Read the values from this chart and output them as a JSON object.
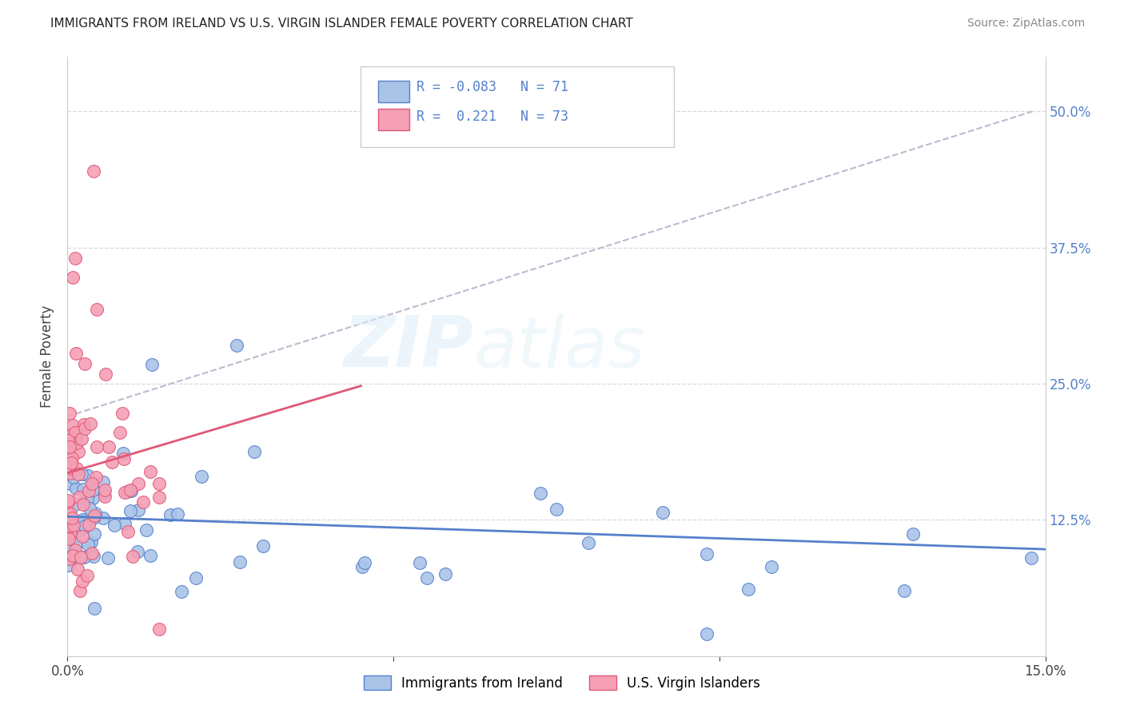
{
  "title": "IMMIGRANTS FROM IRELAND VS U.S. VIRGIN ISLANDER FEMALE POVERTY CORRELATION CHART",
  "source": "Source: ZipAtlas.com",
  "ylabel": "Female Poverty",
  "x_min": 0.0,
  "x_max": 0.15,
  "y_min": 0.0,
  "y_max": 0.55,
  "x_ticks": [
    0.0,
    0.05,
    0.1,
    0.15
  ],
  "x_tick_labels": [
    "0.0%",
    "",
    "",
    "15.0%"
  ],
  "y_ticks": [
    0.0,
    0.125,
    0.25,
    0.375,
    0.5
  ],
  "y_tick_labels_right": [
    "",
    "12.5%",
    "25.0%",
    "37.5%",
    "50.0%"
  ],
  "color_blue": "#aac4e8",
  "color_pink": "#f5a0b5",
  "line_blue": "#5580cc",
  "line_pink": "#e05878",
  "line_dashed_color": "#c0b8d0",
  "watermark_zip": "ZIP",
  "watermark_atlas": "atlas",
  "title_fontsize": 11,
  "source_fontsize": 10,
  "legend_r1_text": "R = -0.083",
  "legend_n1_text": "N = 71",
  "legend_r2_text": "R =  0.221",
  "legend_n2_text": "N = 73",
  "legend_label1": "Immigrants from Ireland",
  "legend_label2": "U.S. Virgin Islanders",
  "blue_trend_x": [
    0.0,
    0.15
  ],
  "blue_trend_y": [
    0.128,
    0.098
  ],
  "pink_trend_x": [
    0.0,
    0.045
  ],
  "pink_trend_y": [
    0.168,
    0.248
  ],
  "dash_trend_x": [
    0.0,
    0.148
  ],
  "dash_trend_y": [
    0.22,
    0.5
  ]
}
